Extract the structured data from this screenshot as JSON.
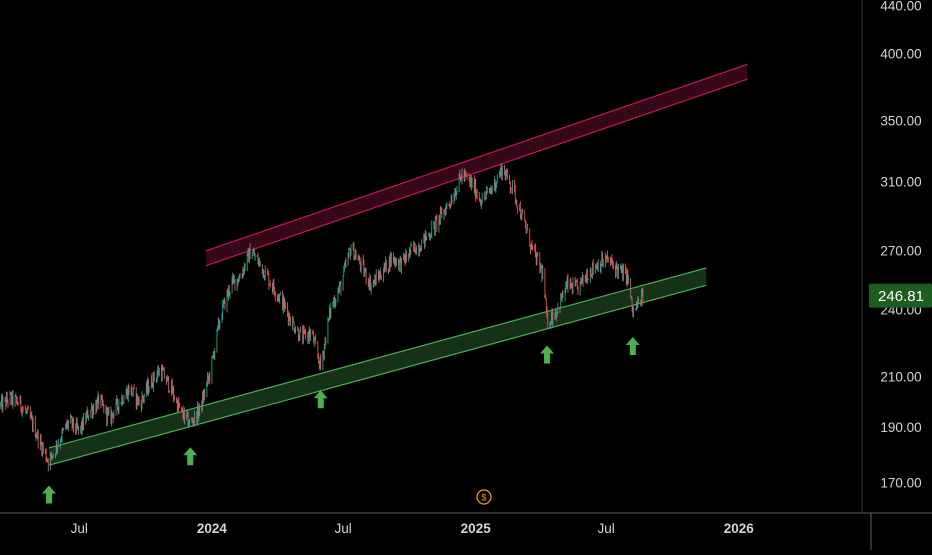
{
  "chart_data": {
    "type": "candlestick",
    "last_price_label": "246.81",
    "y_axis": {
      "scale": "log",
      "range": [
        160,
        445
      ],
      "ticks": [
        "170.00",
        "190.00",
        "210.00",
        "240.00",
        "270.00",
        "310.00",
        "350.00",
        "400.00",
        "440.00"
      ]
    },
    "x_axis": {
      "range": [
        "2023-03-13",
        "2026-06-21"
      ],
      "ticks": [
        {
          "date": "2023-07-01",
          "label": "Jul"
        },
        {
          "date": "2024-01-01",
          "label": "2024"
        },
        {
          "date": "2024-07-01",
          "label": "Jul"
        },
        {
          "date": "2025-01-01",
          "label": "2025"
        },
        {
          "date": "2025-07-01",
          "label": "Jul"
        },
        {
          "date": "2026-01-01",
          "label": "2026"
        }
      ]
    },
    "price_path": [
      [
        "2023-03-13",
        198
      ],
      [
        "2023-03-27",
        201
      ],
      [
        "2023-04-10",
        199
      ],
      [
        "2023-04-24",
        193
      ],
      [
        "2023-05-08",
        184
      ],
      [
        "2023-05-20",
        177
      ],
      [
        "2023-06-03",
        185
      ],
      [
        "2023-06-17",
        192
      ],
      [
        "2023-07-01",
        188
      ],
      [
        "2023-07-15",
        196
      ],
      [
        "2023-07-29",
        200
      ],
      [
        "2023-08-12",
        193
      ],
      [
        "2023-08-26",
        200
      ],
      [
        "2023-09-09",
        205
      ],
      [
        "2023-09-23",
        199
      ],
      [
        "2023-10-07",
        207
      ],
      [
        "2023-10-21",
        213
      ],
      [
        "2023-11-04",
        206
      ],
      [
        "2023-11-18",
        196
      ],
      [
        "2023-12-02",
        191
      ],
      [
        "2023-12-16",
        197
      ],
      [
        "2023-12-30",
        212
      ],
      [
        "2024-01-13",
        237
      ],
      [
        "2024-01-27",
        252
      ],
      [
        "2024-02-10",
        257
      ],
      [
        "2024-02-24",
        270
      ],
      [
        "2024-03-09",
        262
      ],
      [
        "2024-03-23",
        253
      ],
      [
        "2024-04-06",
        245
      ],
      [
        "2024-04-20",
        235
      ],
      [
        "2024-05-04",
        227
      ],
      [
        "2024-05-18",
        229
      ],
      [
        "2024-05-31",
        214
      ],
      [
        "2024-06-14",
        241
      ],
      [
        "2024-06-28",
        252
      ],
      [
        "2024-07-12",
        272
      ],
      [
        "2024-07-26",
        262
      ],
      [
        "2024-08-09",
        252
      ],
      [
        "2024-08-23",
        258
      ],
      [
        "2024-09-06",
        266
      ],
      [
        "2024-09-20",
        263
      ],
      [
        "2024-10-04",
        270
      ],
      [
        "2024-10-18",
        274
      ],
      [
        "2024-11-01",
        281
      ],
      [
        "2024-11-15",
        290
      ],
      [
        "2024-11-29",
        300
      ],
      [
        "2024-12-13",
        314
      ],
      [
        "2024-12-27",
        308
      ],
      [
        "2025-01-10",
        298
      ],
      [
        "2025-01-24",
        306
      ],
      [
        "2025-02-07",
        318
      ],
      [
        "2025-02-21",
        306
      ],
      [
        "2025-03-07",
        288
      ],
      [
        "2025-03-21",
        270
      ],
      [
        "2025-04-04",
        258
      ],
      [
        "2025-04-10",
        234
      ],
      [
        "2025-04-24",
        240
      ],
      [
        "2025-05-08",
        252
      ],
      [
        "2025-05-22",
        250
      ],
      [
        "2025-06-05",
        258
      ],
      [
        "2025-06-19",
        263
      ],
      [
        "2025-07-03",
        265
      ],
      [
        "2025-07-17",
        260
      ],
      [
        "2025-07-31",
        256
      ],
      [
        "2025-08-07",
        238
      ],
      [
        "2025-08-21",
        246.81
      ]
    ],
    "support_channel": {
      "color": "#4caf50",
      "start": [
        "2023-05-20",
        176
      ],
      "end": [
        "2025-11-17",
        252
      ],
      "width_pct": 3.5
    },
    "resistance_channel": {
      "color": "#c2185b",
      "start": [
        "2023-12-24",
        262
      ],
      "end": [
        "2026-01-13",
        380
      ],
      "width_pct": 3
    },
    "arrows": [
      "2023-05-20",
      "2023-12-02",
      "2024-05-31",
      "2025-04-10",
      "2025-08-07"
    ],
    "colors": {
      "up": "#26a69a",
      "down": "#ef5350",
      "arrow": "#4caf50",
      "price_badge": "#1b5e20",
      "axis_text": "#d1d4dc",
      "axis_line": "#5d606b"
    },
    "currency_symbol": "$"
  }
}
